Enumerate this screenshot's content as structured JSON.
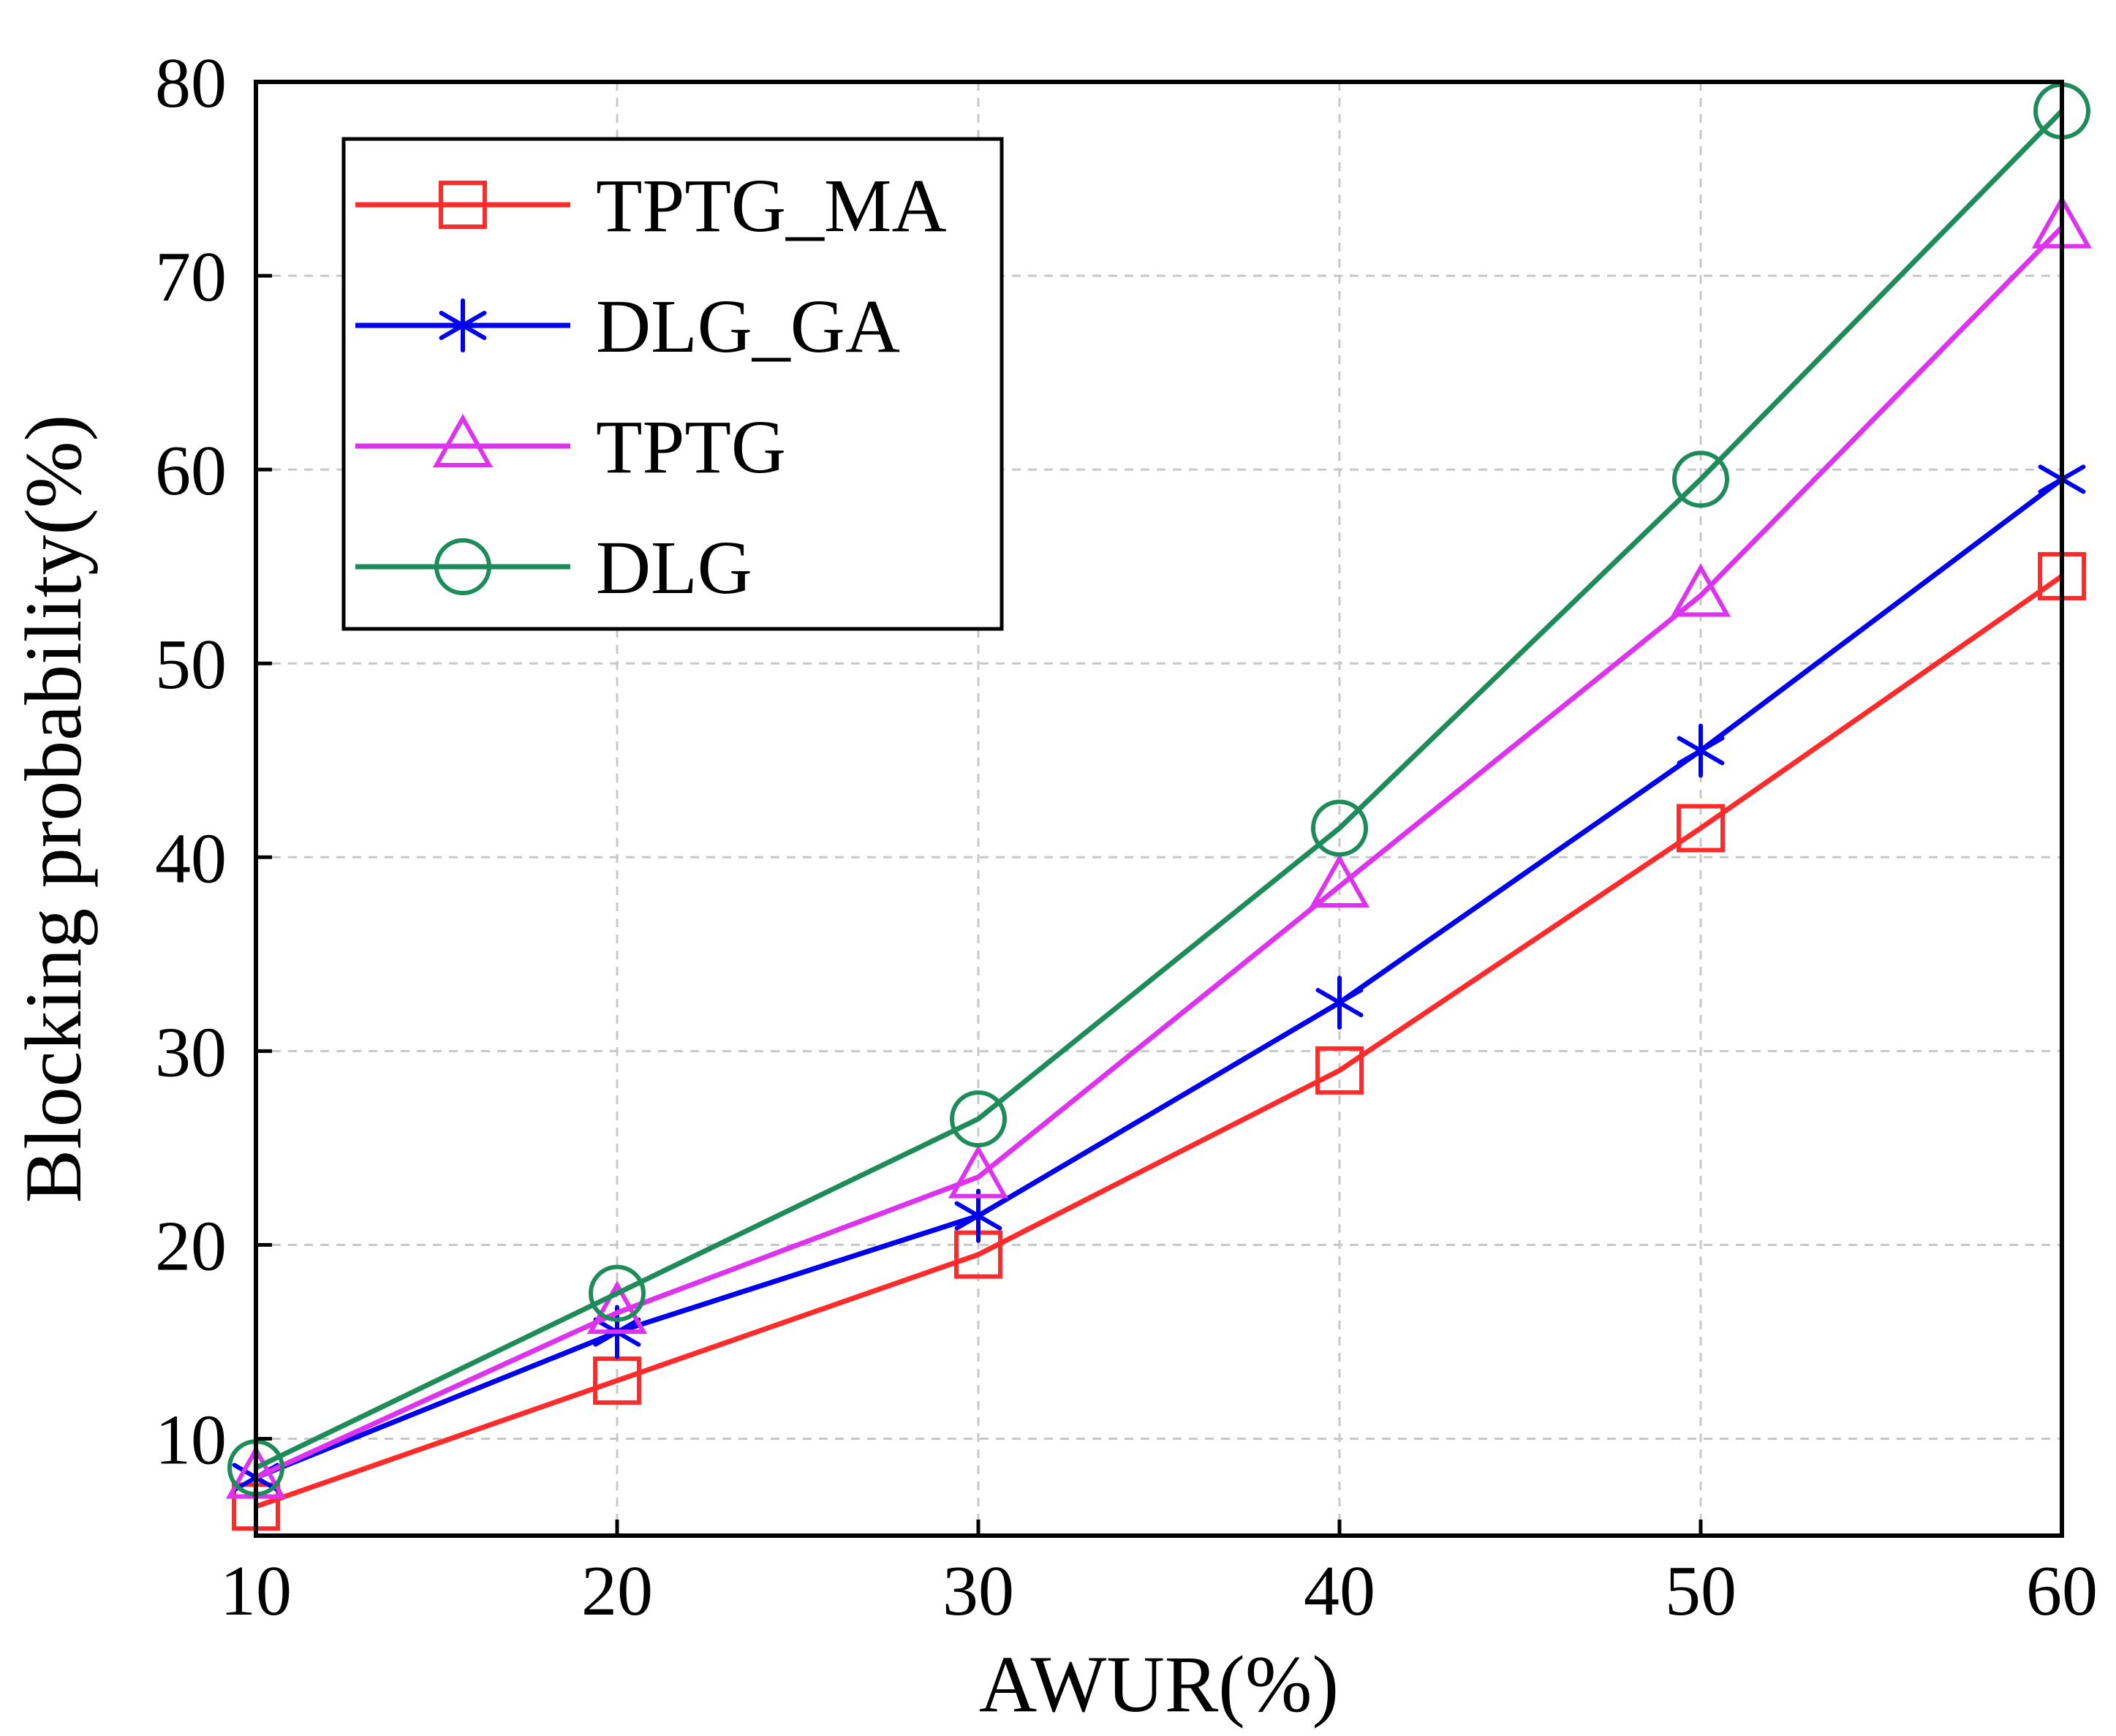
{
  "chart_data": {
    "type": "line",
    "title": "",
    "xlabel": "AWUR(%)",
    "ylabel": "Blocking probability(%)",
    "x": [
      10,
      20,
      30,
      40,
      50,
      60
    ],
    "xlim": [
      10,
      60
    ],
    "ylim": [
      5,
      80
    ],
    "xticks": [
      10,
      20,
      30,
      40,
      50,
      60
    ],
    "yticks": [
      10,
      20,
      30,
      40,
      50,
      60,
      70,
      80
    ],
    "xtick_labels": [
      "10",
      "20",
      "30",
      "40",
      "50",
      "60"
    ],
    "ytick_labels": [
      "10",
      "20",
      "30",
      "40",
      "50",
      "60",
      "70",
      "80"
    ],
    "grid": true,
    "legend_position": "top-left",
    "series": [
      {
        "name": "TPTG_MA",
        "color": "#ff2a2a",
        "marker": "square",
        "values": [
          6.5,
          13,
          19.5,
          29,
          41.5,
          54.5
        ]
      },
      {
        "name": "DLG_GA",
        "color": "#0000ee",
        "marker": "asterisk",
        "values": [
          8,
          15.5,
          21.5,
          32.5,
          45.5,
          59.5
        ]
      },
      {
        "name": "TPTG",
        "color": "#dd33ee",
        "marker": "triangle",
        "values": [
          8,
          16.5,
          23.5,
          38.5,
          53.5,
          72.5
        ]
      },
      {
        "name": "DLG",
        "color": "#1e8c5a",
        "marker": "circle",
        "values": [
          8.5,
          17.5,
          26.5,
          41.5,
          59.5,
          78.5
        ]
      }
    ]
  }
}
